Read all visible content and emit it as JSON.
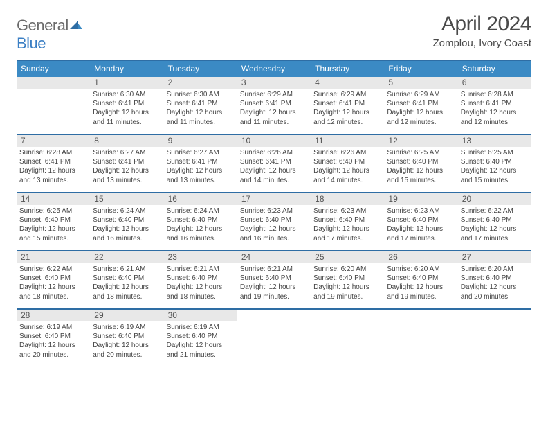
{
  "brand": {
    "word1": "General",
    "word2": "Blue"
  },
  "title": "April 2024",
  "location": "Zomplou, Ivory Coast",
  "colors": {
    "header_bg": "#3b8ac4",
    "header_text": "#ffffff",
    "rule": "#2e6da4",
    "daynum_bg": "#e8e8e8",
    "body_text": "#444444",
    "logo_gray": "#6b6b6b",
    "logo_blue": "#3b7fc4"
  },
  "weekdays": [
    "Sunday",
    "Monday",
    "Tuesday",
    "Wednesday",
    "Thursday",
    "Friday",
    "Saturday"
  ],
  "start_offset": 1,
  "days": [
    {
      "n": 1,
      "sunrise": "6:30 AM",
      "sunset": "6:41 PM",
      "daylight": "12 hours and 11 minutes."
    },
    {
      "n": 2,
      "sunrise": "6:30 AM",
      "sunset": "6:41 PM",
      "daylight": "12 hours and 11 minutes."
    },
    {
      "n": 3,
      "sunrise": "6:29 AM",
      "sunset": "6:41 PM",
      "daylight": "12 hours and 11 minutes."
    },
    {
      "n": 4,
      "sunrise": "6:29 AM",
      "sunset": "6:41 PM",
      "daylight": "12 hours and 12 minutes."
    },
    {
      "n": 5,
      "sunrise": "6:29 AM",
      "sunset": "6:41 PM",
      "daylight": "12 hours and 12 minutes."
    },
    {
      "n": 6,
      "sunrise": "6:28 AM",
      "sunset": "6:41 PM",
      "daylight": "12 hours and 12 minutes."
    },
    {
      "n": 7,
      "sunrise": "6:28 AM",
      "sunset": "6:41 PM",
      "daylight": "12 hours and 13 minutes."
    },
    {
      "n": 8,
      "sunrise": "6:27 AM",
      "sunset": "6:41 PM",
      "daylight": "12 hours and 13 minutes."
    },
    {
      "n": 9,
      "sunrise": "6:27 AM",
      "sunset": "6:41 PM",
      "daylight": "12 hours and 13 minutes."
    },
    {
      "n": 10,
      "sunrise": "6:26 AM",
      "sunset": "6:41 PM",
      "daylight": "12 hours and 14 minutes."
    },
    {
      "n": 11,
      "sunrise": "6:26 AM",
      "sunset": "6:40 PM",
      "daylight": "12 hours and 14 minutes."
    },
    {
      "n": 12,
      "sunrise": "6:25 AM",
      "sunset": "6:40 PM",
      "daylight": "12 hours and 15 minutes."
    },
    {
      "n": 13,
      "sunrise": "6:25 AM",
      "sunset": "6:40 PM",
      "daylight": "12 hours and 15 minutes."
    },
    {
      "n": 14,
      "sunrise": "6:25 AM",
      "sunset": "6:40 PM",
      "daylight": "12 hours and 15 minutes."
    },
    {
      "n": 15,
      "sunrise": "6:24 AM",
      "sunset": "6:40 PM",
      "daylight": "12 hours and 16 minutes."
    },
    {
      "n": 16,
      "sunrise": "6:24 AM",
      "sunset": "6:40 PM",
      "daylight": "12 hours and 16 minutes."
    },
    {
      "n": 17,
      "sunrise": "6:23 AM",
      "sunset": "6:40 PM",
      "daylight": "12 hours and 16 minutes."
    },
    {
      "n": 18,
      "sunrise": "6:23 AM",
      "sunset": "6:40 PM",
      "daylight": "12 hours and 17 minutes."
    },
    {
      "n": 19,
      "sunrise": "6:23 AM",
      "sunset": "6:40 PM",
      "daylight": "12 hours and 17 minutes."
    },
    {
      "n": 20,
      "sunrise": "6:22 AM",
      "sunset": "6:40 PM",
      "daylight": "12 hours and 17 minutes."
    },
    {
      "n": 21,
      "sunrise": "6:22 AM",
      "sunset": "6:40 PM",
      "daylight": "12 hours and 18 minutes."
    },
    {
      "n": 22,
      "sunrise": "6:21 AM",
      "sunset": "6:40 PM",
      "daylight": "12 hours and 18 minutes."
    },
    {
      "n": 23,
      "sunrise": "6:21 AM",
      "sunset": "6:40 PM",
      "daylight": "12 hours and 18 minutes."
    },
    {
      "n": 24,
      "sunrise": "6:21 AM",
      "sunset": "6:40 PM",
      "daylight": "12 hours and 19 minutes."
    },
    {
      "n": 25,
      "sunrise": "6:20 AM",
      "sunset": "6:40 PM",
      "daylight": "12 hours and 19 minutes."
    },
    {
      "n": 26,
      "sunrise": "6:20 AM",
      "sunset": "6:40 PM",
      "daylight": "12 hours and 19 minutes."
    },
    {
      "n": 27,
      "sunrise": "6:20 AM",
      "sunset": "6:40 PM",
      "daylight": "12 hours and 20 minutes."
    },
    {
      "n": 28,
      "sunrise": "6:19 AM",
      "sunset": "6:40 PM",
      "daylight": "12 hours and 20 minutes."
    },
    {
      "n": 29,
      "sunrise": "6:19 AM",
      "sunset": "6:40 PM",
      "daylight": "12 hours and 20 minutes."
    },
    {
      "n": 30,
      "sunrise": "6:19 AM",
      "sunset": "6:40 PM",
      "daylight": "12 hours and 21 minutes."
    }
  ],
  "labels": {
    "sunrise": "Sunrise:",
    "sunset": "Sunset:",
    "daylight": "Daylight:"
  }
}
